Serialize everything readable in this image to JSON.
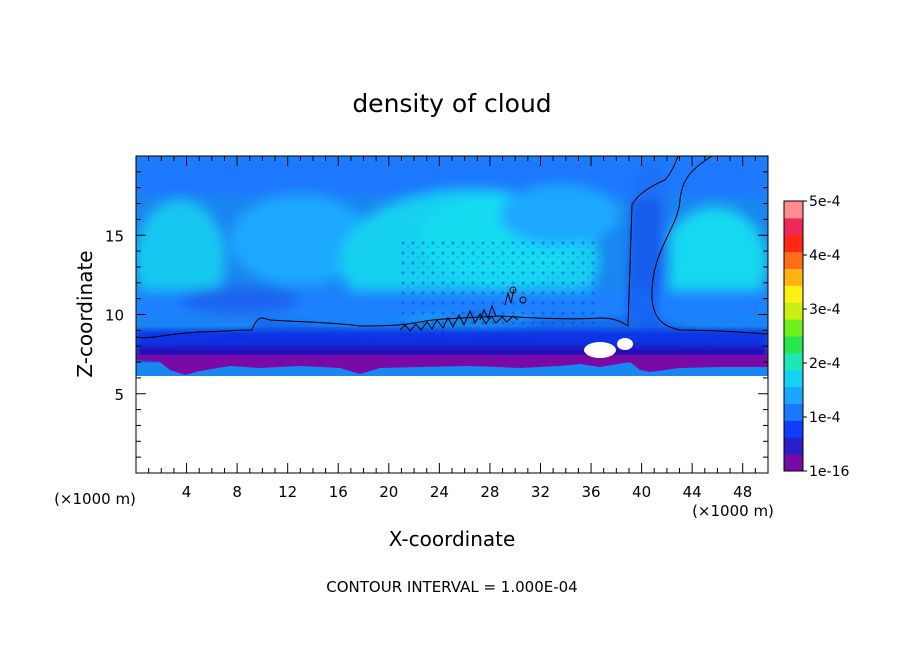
{
  "chart_data": {
    "type": "heatmap",
    "title": "density of cloud",
    "xlabel": "X-coordinate",
    "ylabel": "Z-coordinate",
    "x_unit": "(×1000 m)",
    "z_unit": "(×1000 m)",
    "xlim": [
      0,
      50
    ],
    "ylim": [
      0,
      20
    ],
    "x_ticks": [
      "4",
      "8",
      "12",
      "16",
      "20",
      "24",
      "28",
      "32",
      "36",
      "40",
      "44",
      "48"
    ],
    "y_ticks": [
      "5",
      "10",
      "15"
    ],
    "colorbar": {
      "labels": [
        "1e-16",
        "1e-4",
        "2e-4",
        "3e-4",
        "4e-4",
        "5e-4"
      ],
      "range": [
        0,
        0.0005
      ],
      "colors": [
        "#7a0aa6",
        "#2a1fc7",
        "#0f3cff",
        "#1a78ff",
        "#1aa8ff",
        "#14d2f0",
        "#1ee6b4",
        "#28e650",
        "#6ef01e",
        "#c8f014",
        "#fff014",
        "#ffb414",
        "#ff6e14",
        "#ff2814",
        "#f0285a",
        "#ff8c8c"
      ]
    },
    "contour_interval": "CONTOUR INTERVAL = 1.000E-04",
    "grid": false,
    "legend": "right"
  }
}
